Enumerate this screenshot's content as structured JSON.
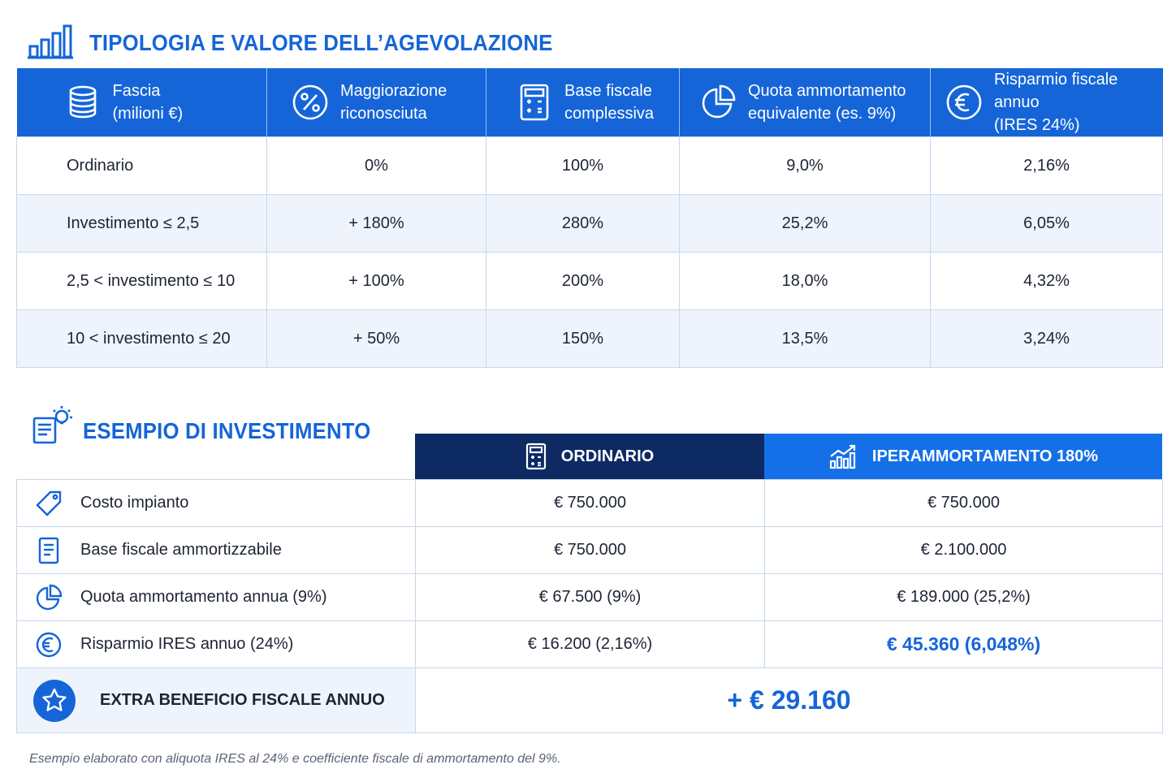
{
  "section1": {
    "title": "TIPOLOGIA E VALORE DELL’AGEVOLAZIONE"
  },
  "table1": {
    "headers": [
      {
        "line1": "Fascia",
        "line2": "(milioni €)",
        "icon": "coins-stack-icon"
      },
      {
        "line1": "Maggiorazione",
        "line2": "riconosciuta",
        "icon": "percent-icon"
      },
      {
        "line1": "Base fiscale",
        "line2": "complessiva",
        "icon": "calculator-icon"
      },
      {
        "line1": "Quota ammortamento",
        "line2": "equivalente (es. 9%)",
        "icon": "pie-chart-icon"
      },
      {
        "line1": "Risparmio fiscale annuo",
        "line2": "(IRES 24%)",
        "icon": "euro-icon"
      }
    ],
    "rows": [
      [
        "Ordinario",
        "0%",
        "100%",
        "9,0%",
        "2,16%"
      ],
      [
        "Investimento ≤ 2,5",
        "+ 180%",
        "280%",
        "25,2%",
        "6,05%"
      ],
      [
        "2,5 < investimento ≤ 10",
        "+ 100%",
        "200%",
        "18,0%",
        "4,32%"
      ],
      [
        "10 < investimento ≤ 20",
        "+ 50%",
        "150%",
        "13,5%",
        "3,24%"
      ]
    ]
  },
  "section2": {
    "title": "ESEMPIO DI INVESTIMENTO"
  },
  "table2": {
    "col_ordinario": "ORDINARIO",
    "col_iper": "IPERAMMORTAMENTO 180%",
    "rows": [
      {
        "label": "Costo impianto",
        "icon": "tag-icon",
        "ordinario": "€ 750.000",
        "iper": "€ 750.000"
      },
      {
        "label": "Base fiscale ammortizzabile",
        "icon": "document-icon",
        "ordinario": "€ 750.000",
        "iper": "€ 2.100.000"
      },
      {
        "label": "Quota ammortamento annua (9%)",
        "icon": "pie-chart-icon",
        "ordinario": "€ 67.500 (9%)",
        "iper": "€ 189.000 (25,2%)"
      },
      {
        "label": "Risparmio IRES annuo (24%)",
        "icon": "euro-icon",
        "ordinario": "€ 16.200 (2,16%)",
        "iper": "€ 45.360 (6,048%)"
      }
    ],
    "total": {
      "label": "EXTRA BENEFICIO FISCALE ANNUO",
      "icon": "star-icon",
      "value": "+ € 29.160"
    }
  },
  "footnote": "Esempio elaborato con aliquota IRES al 24% e coefficiente fiscale di ammortamento del 9%.",
  "colors": {
    "accent": "#1565d8",
    "dark": "#0d2a63",
    "row_alt": "#eff4fc"
  }
}
